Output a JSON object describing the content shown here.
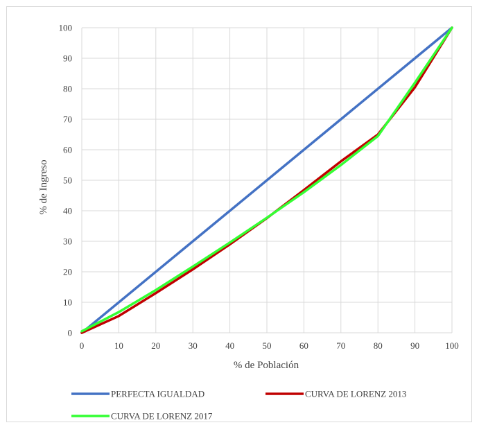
{
  "chart_data": {
    "type": "line",
    "title": "",
    "xlabel": "% de Población",
    "ylabel": "% de Ingreso",
    "xlim": [
      0,
      100
    ],
    "ylim": [
      0,
      100
    ],
    "x_ticks": [
      "0",
      "10",
      "20",
      "30",
      "40",
      "50",
      "60",
      "70",
      "80",
      "90",
      "100"
    ],
    "y_ticks": [
      "0",
      "10",
      "20",
      "30",
      "40",
      "50",
      "60",
      "70",
      "80",
      "90",
      "100"
    ],
    "grid": true,
    "legend_position": "bottom",
    "series": [
      {
        "name": "PERFECTA IGUALDAD",
        "color": "#4472c4",
        "points": [
          [
            0,
            0
          ],
          [
            100,
            100
          ]
        ]
      },
      {
        "name": "CURVA DE LORENZ 2013",
        "color": "#c00000",
        "points": [
          [
            0,
            0
          ],
          [
            10,
            5.5
          ],
          [
            20,
            13
          ],
          [
            30,
            20.8
          ],
          [
            40,
            29
          ],
          [
            50,
            37.6
          ],
          [
            60,
            46.8
          ],
          [
            70,
            56.2
          ],
          [
            80,
            65
          ],
          [
            90,
            80.5
          ],
          [
            100,
            100
          ]
        ]
      },
      {
        "name": "CURVA DE LORENZ 2017",
        "color": "#33ff33",
        "points": [
          [
            0,
            0.5
          ],
          [
            10,
            6.8
          ],
          [
            20,
            14
          ],
          [
            30,
            21.7
          ],
          [
            40,
            29.6
          ],
          [
            50,
            37.7
          ],
          [
            60,
            46.1
          ],
          [
            70,
            55
          ],
          [
            80,
            64.5
          ],
          [
            90,
            82
          ],
          [
            100,
            100
          ]
        ]
      }
    ]
  }
}
